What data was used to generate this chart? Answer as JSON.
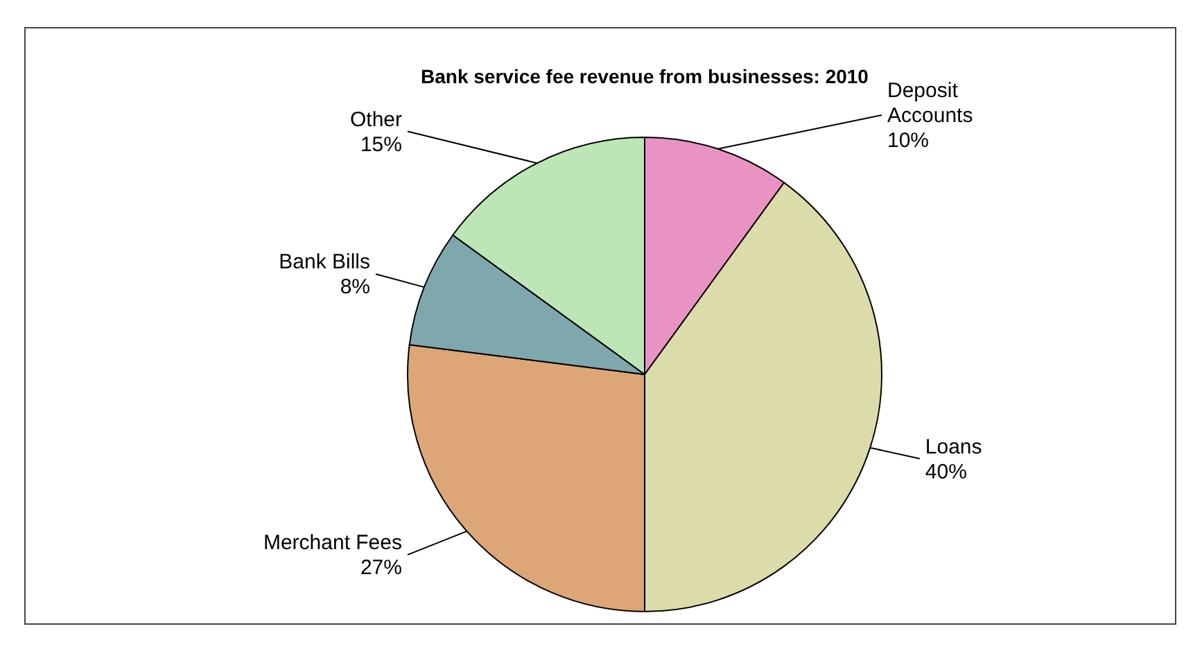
{
  "chart_data": {
    "type": "pie",
    "title": "Bank service fee revenue  from businesses: 2010",
    "categories": [
      "Deposit Accounts",
      "Loans",
      "Merchant Fees",
      "Bank Bills",
      "Other"
    ],
    "values": [
      10,
      40,
      27,
      8,
      15
    ],
    "value_labels": [
      "10%",
      "40%",
      "27%",
      "8%",
      "15%"
    ],
    "colors": [
      "#e993c4",
      "#dcdcaa",
      "#dca676",
      "#7ea8ae",
      "#bde6b6"
    ]
  }
}
